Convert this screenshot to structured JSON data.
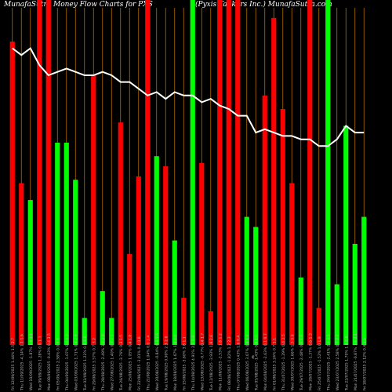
{
  "title_left": "MunafaSutra  Money Flow  Charts for PXS",
  "title_right": "(Pyxis Tankers Inc.) MunafaSutra.com",
  "colors": {
    "up": "#00ff00",
    "down": "#ff0000",
    "line": "#ffffff",
    "grid": "#b36b00",
    "background": "#000000"
  },
  "chart_data": {
    "type": "bar",
    "description_free": true,
    "bar_scale": [
      0,
      100
    ],
    "line_scale": [
      0,
      100
    ],
    "categories": [
      "Fri 12/09/2025 1.44% 1.5 2.7",
      "Thu 11/09/2025 -4.14% 1.1 1.6",
      "Wed 10/09/2025 -1.87% 1.9 1.1",
      "Tue 09/09/2025 1.28% 0.0 1.3",
      "Mon 08/09/2025 -0.43% 0.4 3.5",
      "Fri 05/09/2025 2.58% 0.0 2.6",
      "Thu 04/09/2025 -1.07% 0.0 1.3",
      "Wed 03/09/2025 1.71% 0.4 2.0",
      "Tue 02/09/2025 1.22% 0.0 3.6",
      "Fri 29/08/2025 3.57% 0.7 3.2",
      "Thu 28/08/2025 -2.49% 3.8 2.0",
      "Wed 27/08/2025 1.40% 0.7 2.1",
      "Tue 26/08/2025 -3.76% 0.3 1.5",
      "Mon 25/08/2025 1.05% 0.4 1.8",
      "Fri 22/08/2025 -3.01% 0.4 0.8",
      "Thu 21/08/2025 1.04% 0.0 1.4",
      "Wed 20/08/2025 -0.84% 0.4 1.9",
      "Tue 19/08/2025 0.99% 2.3 2.6",
      "Mon 18/08/2025 1.67% 1.0 3.4",
      "Fri 15/08/2025 -3.60% 3.8 1.1",
      "Thu 14/08/2025 4.91% 2.1 2.0",
      "Wed 13/08/2025 -0.77% 0.4 1.7",
      "Tue 12/08/2025 -3.93% 1.9 2.6",
      "Mon 11/08/2025 -2.53% 1.8 1.2",
      "Fri 08/08/2025 -1.82% 1.2 2.3",
      "Thu 07/08/2025 0.43% 1.6 0.4",
      "Wed 06/08/2025 3.07% 0.4 1.0",
      "Tue 05/08/2025 -1.43% 0.8 2.0",
      "Mon 04/08/2025 -2.63% 0.1 0.7",
      "Fri 01/08/2025 3.24% 0.7 1.1",
      "Thu 31/07/2025 -1.29% 0.4 2.5",
      "Wed 30/07/2025 1.66% 1.5 0.9",
      "Tue 29/07/2025 -2.48% 0.0 1.3",
      "Mon 28/07/2025 -1.37% 0.6 1.3",
      "Fri 25/07/2025 -1.52% 1.0 1.9",
      "Thu 24/07/2025 -2.41% 2.4 3.5",
      "Wed 23/07/2025 2.58% 0.5 2.2",
      "Tue 22/07/2025 1.70% 1.6 2.6",
      "Mon 21/07/2025 -0.87% 1.6 2.1",
      "Fri 18/07/2025 2.12% 0.4 1.6"
    ],
    "bars": [
      {
        "dir": "down",
        "value": 90
      },
      {
        "dir": "down",
        "value": 48
      },
      {
        "dir": "green",
        "value": 43
      },
      {
        "dir": "down",
        "value": 110
      },
      {
        "dir": "down",
        "value": 110
      },
      {
        "dir": "green",
        "value": 60
      },
      {
        "dir": "green",
        "value": 60
      },
      {
        "dir": "green",
        "value": 49
      },
      {
        "dir": "green",
        "value": 8
      },
      {
        "dir": "down",
        "value": 80
      },
      {
        "dir": "green",
        "value": 16
      },
      {
        "dir": "green",
        "value": 8
      },
      {
        "dir": "down",
        "value": 66
      },
      {
        "dir": "down",
        "value": 27
      },
      {
        "dir": "down",
        "value": 50
      },
      {
        "dir": "down",
        "value": 110
      },
      {
        "dir": "green",
        "value": 56
      },
      {
        "dir": "down",
        "value": 53
      },
      {
        "dir": "green",
        "value": 31
      },
      {
        "dir": "down",
        "value": 14
      },
      {
        "dir": "green",
        "value": 110
      },
      {
        "dir": "down",
        "value": 54
      },
      {
        "dir": "down",
        "value": 10
      },
      {
        "dir": "down",
        "value": 110
      },
      {
        "dir": "down",
        "value": 110
      },
      {
        "dir": "down",
        "value": 110
      },
      {
        "dir": "green",
        "value": 38
      },
      {
        "dir": "green",
        "value": 35
      },
      {
        "dir": "down",
        "value": 74
      },
      {
        "dir": "down",
        "value": 97
      },
      {
        "dir": "down",
        "value": 70
      },
      {
        "dir": "down",
        "value": 48
      },
      {
        "dir": "green",
        "value": 20
      },
      {
        "dir": "down",
        "value": 110
      },
      {
        "dir": "down",
        "value": 11
      },
      {
        "dir": "green",
        "value": 110
      },
      {
        "dir": "green",
        "value": 18
      },
      {
        "dir": "green",
        "value": 65
      },
      {
        "dir": "green",
        "value": 30
      },
      {
        "dir": "green",
        "value": 38
      }
    ],
    "line": [
      88,
      86,
      88,
      83,
      80,
      81,
      82,
      81,
      80,
      80,
      81,
      80,
      78,
      78,
      76,
      74,
      75,
      73,
      75,
      74,
      74,
      72,
      73,
      71,
      70,
      68,
      68,
      63,
      64,
      63,
      62,
      62,
      61,
      61,
      59,
      59,
      61,
      65,
      63,
      63
    ],
    "center_mark": "¢"
  }
}
